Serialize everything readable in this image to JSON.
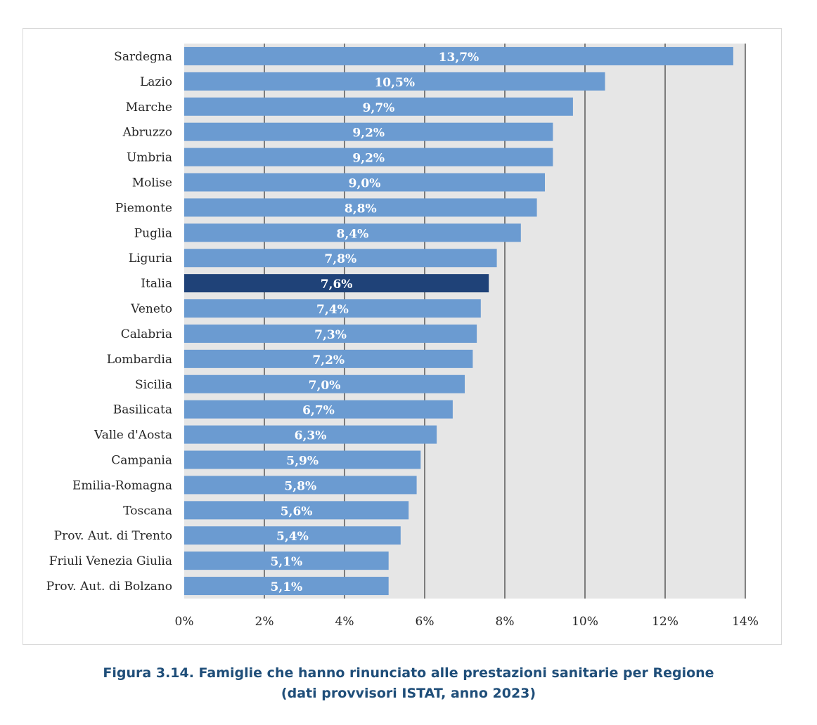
{
  "chart_data": {
    "type": "bar",
    "orientation": "horizontal",
    "categories": [
      "Sardegna",
      "Lazio",
      "Marche",
      "Abruzzo",
      "Umbria",
      "Molise",
      "Piemonte",
      "Puglia",
      "Liguria",
      "Italia",
      "Veneto",
      "Calabria",
      "Lombardia",
      "Sicilia",
      "Basilicata",
      "Valle d'Aosta",
      "Campania",
      "Emilia-Romagna",
      "Toscana",
      "Prov. Aut. di Trento",
      "Friuli Venezia Giulia",
      "Prov. Aut. di Bolzano"
    ],
    "values": [
      13.7,
      10.5,
      9.7,
      9.2,
      9.2,
      9.0,
      8.8,
      8.4,
      7.8,
      7.6,
      7.4,
      7.3,
      7.2,
      7.0,
      6.7,
      6.3,
      5.9,
      5.8,
      5.6,
      5.4,
      5.1,
      5.1
    ],
    "value_labels": [
      "13,7%",
      "10,5%",
      "9,7%",
      "9,2%",
      "9,2%",
      "9,0%",
      "8,8%",
      "8,4%",
      "7,8%",
      "7,6%",
      "7,4%",
      "7,3%",
      "7,2%",
      "7,0%",
      "6,7%",
      "6,3%",
      "5,9%",
      "5,8%",
      "5,6%",
      "5,4%",
      "5,1%",
      "5,1%"
    ],
    "highlight_category": "Italia",
    "xlim": [
      0,
      14
    ],
    "x_ticks": [
      0,
      2,
      4,
      6,
      8,
      10,
      12,
      14
    ],
    "x_tick_labels": [
      "0%",
      "2%",
      "4%",
      "6%",
      "8%",
      "10%",
      "12%",
      "14%"
    ],
    "grid": true,
    "legend": "none",
    "colors": {
      "bar": "#6b9bd1",
      "highlight": "#1f4278",
      "plot_bg": "#e6e6e6",
      "grid": "#595959"
    },
    "caption_line1": "Figura 3.14. Famiglie che hanno rinunciato alle prestazioni sanitarie per Regione",
    "caption_line2": "(dati provvisori ISTAT, anno 2023)"
  }
}
